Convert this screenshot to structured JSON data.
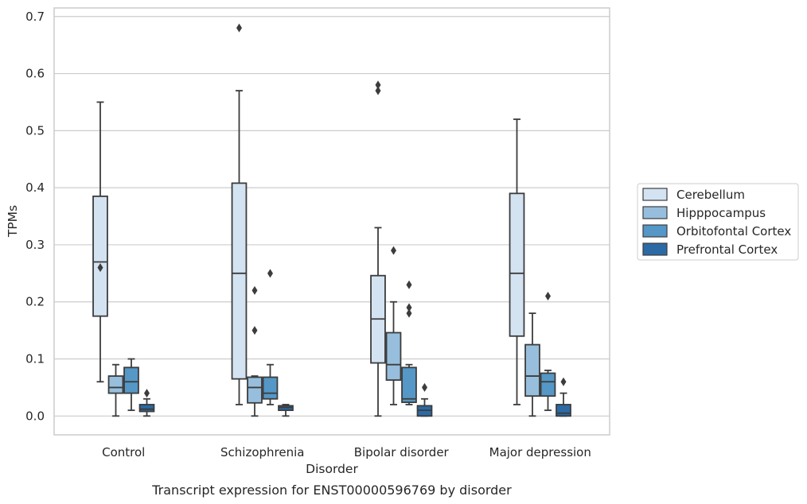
{
  "chart_data": {
    "type": "box",
    "caption": "Transcript expression for ENST00000596769 by disorder",
    "xlabel": "Disorder",
    "ylabel": "TPMs",
    "ylim": [
      -0.033,
      0.715
    ],
    "yticks": [
      0.0,
      0.1,
      0.2,
      0.3,
      0.4,
      0.5,
      0.6,
      0.7
    ],
    "ytick_labels": [
      "0.0",
      "0.1",
      "0.2",
      "0.3",
      "0.4",
      "0.5",
      "0.6",
      "0.7"
    ],
    "grid": true,
    "legend_position": "right",
    "categories": [
      "Control",
      "Schizophrenia",
      "Bipolar disorder",
      "Major depression"
    ],
    "series": [
      {
        "name": "Cerebellum",
        "color": "#d4e3f2",
        "boxes": [
          {
            "low": 0.06,
            "q1": 0.175,
            "median": 0.27,
            "q3": 0.385,
            "high": 0.55,
            "outliers": [
              0.26
            ]
          },
          {
            "low": 0.02,
            "q1": 0.065,
            "median": 0.25,
            "q3": 0.408,
            "high": 0.57,
            "outliers": [
              0.68
            ]
          },
          {
            "low": 0.0,
            "q1": 0.093,
            "median": 0.17,
            "q3": 0.246,
            "high": 0.33,
            "outliers": [
              0.57,
              0.58
            ]
          },
          {
            "low": 0.02,
            "q1": 0.14,
            "median": 0.25,
            "q3": 0.39,
            "high": 0.52,
            "outliers": []
          }
        ]
      },
      {
        "name": "Hipppocampus",
        "color": "#97bfdd",
        "boxes": [
          {
            "low": 0.0,
            "q1": 0.04,
            "median": 0.05,
            "q3": 0.07,
            "high": 0.09,
            "outliers": []
          },
          {
            "low": 0.0,
            "q1": 0.023,
            "median": 0.05,
            "q3": 0.068,
            "high": 0.07,
            "outliers": [
              0.15,
              0.22
            ]
          },
          {
            "low": 0.02,
            "q1": 0.063,
            "median": 0.09,
            "q3": 0.146,
            "high": 0.2,
            "outliers": [
              0.29
            ]
          },
          {
            "low": 0.0,
            "q1": 0.035,
            "median": 0.07,
            "q3": 0.125,
            "high": 0.18,
            "outliers": []
          }
        ]
      },
      {
        "name": "Orbitofontal Cortex",
        "color": "#5597c6",
        "boxes": [
          {
            "low": 0.01,
            "q1": 0.04,
            "median": 0.06,
            "q3": 0.085,
            "high": 0.1,
            "outliers": []
          },
          {
            "low": 0.02,
            "q1": 0.03,
            "median": 0.04,
            "q3": 0.068,
            "high": 0.09,
            "outliers": [
              0.25
            ]
          },
          {
            "low": 0.02,
            "q1": 0.024,
            "median": 0.03,
            "q3": 0.085,
            "high": 0.09,
            "outliers": [
              0.18,
              0.19,
              0.23
            ]
          },
          {
            "low": 0.01,
            "q1": 0.035,
            "median": 0.06,
            "q3": 0.075,
            "high": 0.08,
            "outliers": [
              0.21
            ]
          }
        ]
      },
      {
        "name": "Prefrontal Cortex",
        "color": "#2b6aa5",
        "boxes": [
          {
            "low": 0.0,
            "q1": 0.008,
            "median": 0.012,
            "q3": 0.02,
            "high": 0.03,
            "outliers": [
              0.04
            ]
          },
          {
            "low": 0.0,
            "q1": 0.01,
            "median": 0.015,
            "q3": 0.018,
            "high": 0.02,
            "outliers": []
          },
          {
            "low": 0.0,
            "q1": 0.0,
            "median": 0.01,
            "q3": 0.018,
            "high": 0.03,
            "outliers": [
              0.05
            ]
          },
          {
            "low": 0.0,
            "q1": 0.0,
            "median": 0.005,
            "q3": 0.02,
            "high": 0.04,
            "outliers": [
              0.06
            ]
          }
        ]
      }
    ]
  }
}
